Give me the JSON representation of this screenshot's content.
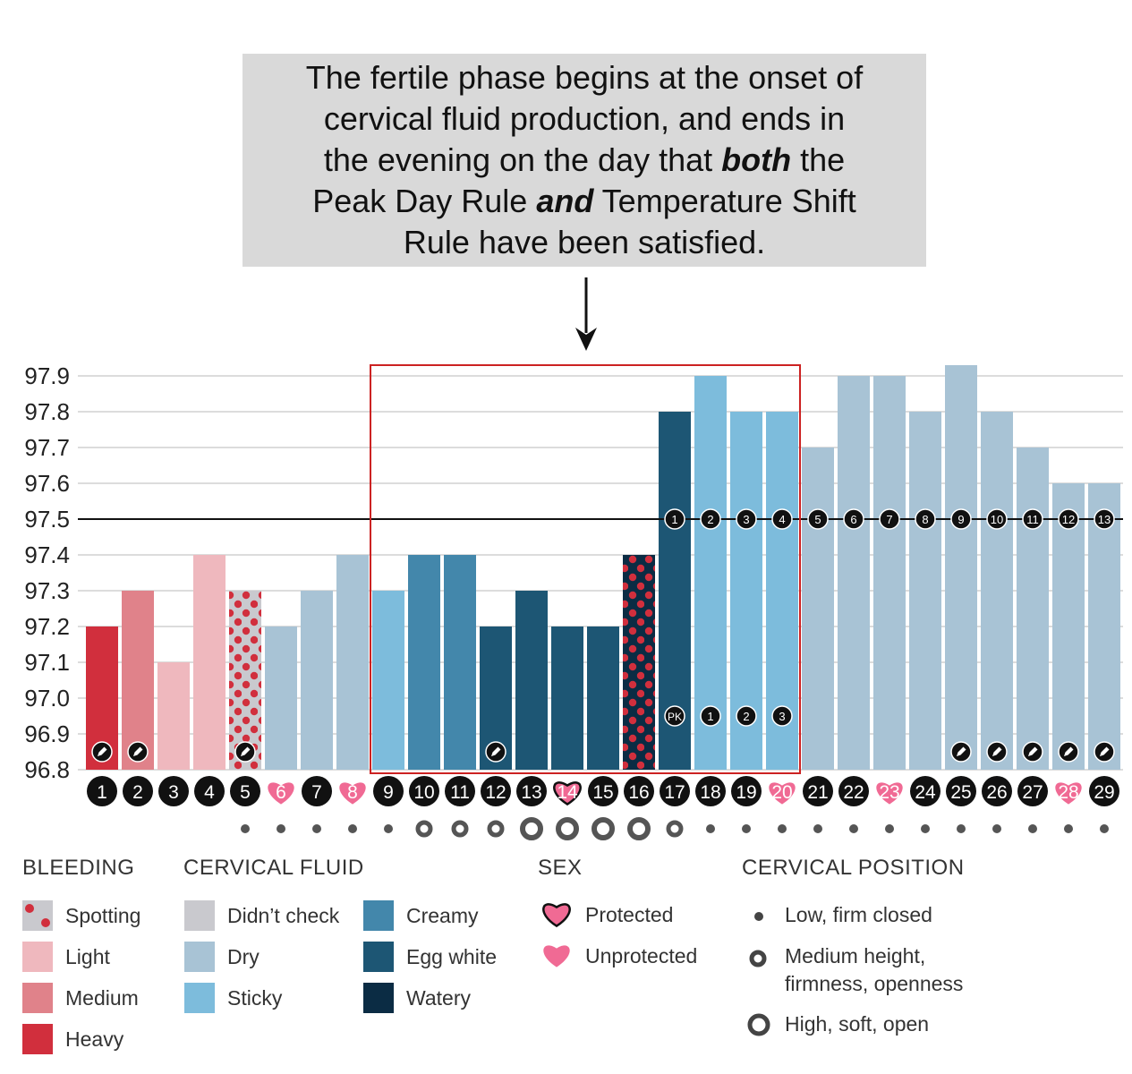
{
  "callout": {
    "line1": "The fertile phase begins at the onset of",
    "line2": "cervical fluid production, and ends in",
    "line3_pre": "the evening on the day that ",
    "line3_em": "both",
    "line3_post": " the",
    "line4_pre": "Peak Day Rule ",
    "line4_em": "and",
    "line4_post": " Temperature Shift",
    "line5": "Rule have been satisfied."
  },
  "colors": {
    "heavy": "#d12f3d",
    "medium": "#e0828a",
    "light": "#efb8be",
    "didnt_check": "#c9c9ce",
    "dry": "#a8c3d5",
    "sticky": "#7dbcdc",
    "creamy": "#4387ab",
    "egg_white": "#1d5674",
    "watery": "#0b2c44",
    "spot_dot": "#d12f3d",
    "heart": "#f06a94",
    "highlight_box": "#cc2222",
    "coverline": "#111111"
  },
  "chart_data": {
    "type": "bar",
    "ylim": [
      96.8,
      97.9
    ],
    "yticks": [
      "97.9",
      "97.8",
      "97.7",
      "97.6",
      "97.5",
      "97.4",
      "97.3",
      "97.2",
      "97.1",
      "97.0",
      "96.9",
      "96.8"
    ],
    "coverline": 97.5,
    "fertile_window_days": [
      9,
      20
    ],
    "days": [
      {
        "day": "1",
        "temp": 97.2,
        "fill": "heavy",
        "pen": true,
        "sex": "",
        "cervix": ""
      },
      {
        "day": "2",
        "temp": 97.3,
        "fill": "medium",
        "pen": true,
        "sex": "",
        "cervix": ""
      },
      {
        "day": "3",
        "temp": 97.1,
        "fill": "light",
        "pen": false,
        "sex": "",
        "cervix": ""
      },
      {
        "day": "4",
        "temp": 97.4,
        "fill": "light",
        "pen": false,
        "sex": "",
        "cervix": ""
      },
      {
        "day": "5",
        "temp": 97.3,
        "fill": "didnt_check",
        "spotting": true,
        "pen": true,
        "sex": "",
        "cervix": "low"
      },
      {
        "day": "6",
        "temp": 97.2,
        "fill": "dry",
        "pen": false,
        "sex": "unprotected",
        "cervix": "low"
      },
      {
        "day": "7",
        "temp": 97.3,
        "fill": "dry",
        "pen": false,
        "sex": "",
        "cervix": "low"
      },
      {
        "day": "8",
        "temp": 97.4,
        "fill": "dry",
        "pen": false,
        "sex": "unprotected",
        "cervix": "low"
      },
      {
        "day": "9",
        "temp": 97.3,
        "fill": "sticky",
        "pen": false,
        "sex": "",
        "cervix": "low"
      },
      {
        "day": "10",
        "temp": 97.4,
        "fill": "creamy",
        "pen": false,
        "sex": "",
        "cervix": "medium"
      },
      {
        "day": "11",
        "temp": 97.4,
        "fill": "creamy",
        "pen": false,
        "sex": "",
        "cervix": "medium"
      },
      {
        "day": "12",
        "temp": 97.2,
        "fill": "egg_white",
        "pen": true,
        "sex": "",
        "cervix": "medium"
      },
      {
        "day": "13",
        "temp": 97.3,
        "fill": "egg_white",
        "pen": false,
        "sex": "",
        "cervix": "high"
      },
      {
        "day": "14",
        "temp": 97.2,
        "fill": "egg_white",
        "pen": false,
        "sex": "protected",
        "cervix": "high"
      },
      {
        "day": "15",
        "temp": 97.2,
        "fill": "egg_white",
        "pen": false,
        "sex": "",
        "cervix": "high"
      },
      {
        "day": "16",
        "temp": 97.4,
        "fill": "watery",
        "spotting": true,
        "pen": false,
        "sex": "",
        "cervix": "high"
      },
      {
        "day": "17",
        "temp": 97.8,
        "fill": "egg_white",
        "pen": false,
        "sex": "",
        "cervix": "medium",
        "shift": "1",
        "peak": "PK"
      },
      {
        "day": "18",
        "temp": 97.9,
        "fill": "sticky",
        "pen": false,
        "sex": "",
        "cervix": "low",
        "shift": "2",
        "peak": "1"
      },
      {
        "day": "19",
        "temp": 97.8,
        "fill": "sticky",
        "pen": false,
        "sex": "",
        "cervix": "low",
        "shift": "3",
        "peak": "2"
      },
      {
        "day": "20",
        "temp": 97.8,
        "fill": "sticky",
        "pen": false,
        "sex": "unprotected",
        "cervix": "low",
        "shift": "4",
        "peak": "3"
      },
      {
        "day": "21",
        "temp": 97.7,
        "fill": "dry",
        "pen": false,
        "sex": "",
        "cervix": "low",
        "shift": "5"
      },
      {
        "day": "22",
        "temp": 97.9,
        "fill": "dry",
        "pen": false,
        "sex": "",
        "cervix": "low",
        "shift": "6"
      },
      {
        "day": "23",
        "temp": 97.9,
        "fill": "dry",
        "pen": false,
        "sex": "unprotected",
        "cervix": "low",
        "shift": "7"
      },
      {
        "day": "24",
        "temp": 97.8,
        "fill": "dry",
        "pen": false,
        "sex": "",
        "cervix": "low",
        "shift": "8"
      },
      {
        "day": "25",
        "temp": 97.93,
        "fill": "dry",
        "pen": true,
        "sex": "",
        "cervix": "low",
        "shift": "9"
      },
      {
        "day": "26",
        "temp": 97.8,
        "fill": "dry",
        "pen": true,
        "sex": "",
        "cervix": "low",
        "shift": "10"
      },
      {
        "day": "27",
        "temp": 97.7,
        "fill": "dry",
        "pen": true,
        "sex": "",
        "cervix": "low",
        "shift": "11"
      },
      {
        "day": "28",
        "temp": 97.6,
        "fill": "dry",
        "pen": true,
        "sex": "unprotected",
        "cervix": "low",
        "shift": "12"
      },
      {
        "day": "29",
        "temp": 97.6,
        "fill": "dry",
        "pen": true,
        "sex": "",
        "cervix": "low",
        "shift": "13"
      }
    ]
  },
  "legend": {
    "bleeding": {
      "title": "BLEEDING",
      "items": [
        {
          "label": "Spotting",
          "fill": "didnt_check",
          "spotting": true
        },
        {
          "label": "Light",
          "fill": "light"
        },
        {
          "label": "Medium",
          "fill": "medium"
        },
        {
          "label": "Heavy",
          "fill": "heavy"
        }
      ]
    },
    "cervical_fluid": {
      "title": "CERVICAL FLUID",
      "items": [
        {
          "label": "Didn’t check",
          "fill": "didnt_check"
        },
        {
          "label": "Dry",
          "fill": "dry"
        },
        {
          "label": "Sticky",
          "fill": "sticky"
        },
        {
          "label": "Creamy",
          "fill": "creamy"
        },
        {
          "label": "Egg white",
          "fill": "egg_white"
        },
        {
          "label": "Watery",
          "fill": "watery"
        }
      ]
    },
    "sex": {
      "title": "SEX",
      "items": [
        {
          "label": "Protected",
          "kind": "protected"
        },
        {
          "label": "Unprotected",
          "kind": "unprotected"
        }
      ]
    },
    "cervical_position": {
      "title": "CERVICAL POSITION",
      "items": [
        {
          "label": "Low, firm closed",
          "kind": "low"
        },
        {
          "label": "Medium height,",
          "label2": "firmness, openness",
          "kind": "medium"
        },
        {
          "label": "High, soft, open",
          "kind": "high"
        }
      ]
    }
  }
}
